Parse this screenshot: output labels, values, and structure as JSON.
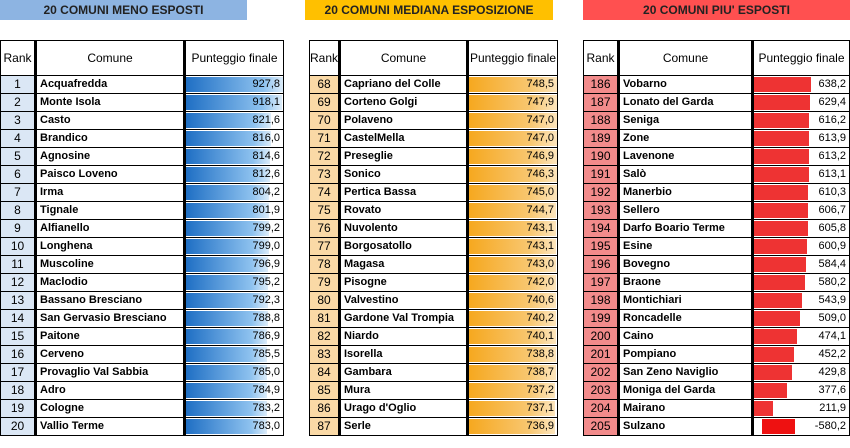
{
  "sections": [
    {
      "title": "20 COMUNI MENO ESPOSTI",
      "header_color": "#8db4e2",
      "headers": {
        "rank": "Rank",
        "comune": "Comune",
        "score": "Punteggio finale"
      },
      "rows": [
        {
          "rank": "1",
          "comune": "Acquafredda",
          "score": "927,8",
          "bar": 1.0
        },
        {
          "rank": "2",
          "comune": "Monte Isola",
          "score": "918,1",
          "bar": 0.99
        },
        {
          "rank": "3",
          "comune": "Casto",
          "score": "821,6",
          "bar": 0.88
        },
        {
          "rank": "4",
          "comune": "Brandico",
          "score": "816,0",
          "bar": 0.88
        },
        {
          "rank": "5",
          "comune": "Agnosine",
          "score": "814,6",
          "bar": 0.87
        },
        {
          "rank": "6",
          "comune": "Paisco Loveno",
          "score": "812,6",
          "bar": 0.87
        },
        {
          "rank": "7",
          "comune": "Irma",
          "score": "804,2",
          "bar": 0.86
        },
        {
          "rank": "8",
          "comune": "Tignale",
          "score": "801,9",
          "bar": 0.86
        },
        {
          "rank": "9",
          "comune": "Alfianello",
          "score": "799,2",
          "bar": 0.86
        },
        {
          "rank": "10",
          "comune": "Longhena",
          "score": "799,0",
          "bar": 0.86
        },
        {
          "rank": "11",
          "comune": "Muscoline",
          "score": "796,9",
          "bar": 0.85
        },
        {
          "rank": "12",
          "comune": "Maclodio",
          "score": "795,2",
          "bar": 0.85
        },
        {
          "rank": "13",
          "comune": "Bassano Bresciano",
          "score": "792,3",
          "bar": 0.85
        },
        {
          "rank": "14",
          "comune": "San Gervasio Bresciano",
          "score": "788,8",
          "bar": 0.85
        },
        {
          "rank": "15",
          "comune": "Paitone",
          "score": "786,9",
          "bar": 0.84
        },
        {
          "rank": "16",
          "comune": "Cerveno",
          "score": "785,5",
          "bar": 0.84
        },
        {
          "rank": "17",
          "comune": "Provaglio Val Sabbia",
          "score": "785,0",
          "bar": 0.84
        },
        {
          "rank": "18",
          "comune": "Adro",
          "score": "784,9",
          "bar": 0.84
        },
        {
          "rank": "19",
          "comune": "Cologne",
          "score": "783,2",
          "bar": 0.84
        },
        {
          "rank": "20",
          "comune": "Vallio Terme",
          "score": "783,0",
          "bar": 0.84
        }
      ]
    },
    {
      "title": "20 COMUNI MEDIANA ESPOSIZIONE",
      "header_color": "#ffc000",
      "headers": {
        "rank": "Rank",
        "comune": "Comune",
        "score": "Punteggio finale"
      },
      "rows": [
        {
          "rank": "68",
          "comune": "Capriano del Colle",
          "score": "748,5",
          "bar": 1.0
        },
        {
          "rank": "69",
          "comune": "Corteno Golgi",
          "score": "747,9",
          "bar": 1.0
        },
        {
          "rank": "70",
          "comune": "Polaveno",
          "score": "747,0",
          "bar": 1.0
        },
        {
          "rank": "71",
          "comune": "CastelMella",
          "score": "747,0",
          "bar": 1.0
        },
        {
          "rank": "72",
          "comune": "Preseglie",
          "score": "746,9",
          "bar": 1.0
        },
        {
          "rank": "73",
          "comune": "Sonico",
          "score": "746,3",
          "bar": 1.0
        },
        {
          "rank": "74",
          "comune": "Pertica Bassa",
          "score": "745,0",
          "bar": 1.0
        },
        {
          "rank": "75",
          "comune": "Rovato",
          "score": "744,7",
          "bar": 0.99
        },
        {
          "rank": "76",
          "comune": "Nuvolento",
          "score": "743,1",
          "bar": 0.99
        },
        {
          "rank": "77",
          "comune": "Borgosatollo",
          "score": "743,1",
          "bar": 0.99
        },
        {
          "rank": "78",
          "comune": "Magasa",
          "score": "743,0",
          "bar": 0.99
        },
        {
          "rank": "79",
          "comune": "Pisogne",
          "score": "742,0",
          "bar": 0.99
        },
        {
          "rank": "80",
          "comune": "Valvestino",
          "score": "740,6",
          "bar": 0.99
        },
        {
          "rank": "81",
          "comune": "Gardone Val Trompia",
          "score": "740,2",
          "bar": 0.99
        },
        {
          "rank": "82",
          "comune": "Niardo",
          "score": "740,1",
          "bar": 0.99
        },
        {
          "rank": "83",
          "comune": "Isorella",
          "score": "738,8",
          "bar": 0.99
        },
        {
          "rank": "84",
          "comune": "Gambara",
          "score": "738,7",
          "bar": 0.99
        },
        {
          "rank": "85",
          "comune": "Mura",
          "score": "737,2",
          "bar": 0.98
        },
        {
          "rank": "86",
          "comune": "Urago d'Oglio",
          "score": "737,1",
          "bar": 0.98
        },
        {
          "rank": "87",
          "comune": "Serle",
          "score": "736,9",
          "bar": 0.98
        }
      ]
    },
    {
      "title": "20 COMUNI PIU' ESPOSTI",
      "header_color": "#ff5050",
      "headers": {
        "rank": "Rank",
        "comune": "Comune",
        "score": "Punteggio finale"
      },
      "rows": [
        {
          "rank": "186",
          "comune": "Vobarno",
          "score": "638,2",
          "bar": 0.6
        },
        {
          "rank": "187",
          "comune": "Lonato del Garda",
          "score": "629,4",
          "bar": 0.59
        },
        {
          "rank": "188",
          "comune": "Seniga",
          "score": "616,2",
          "bar": 0.58
        },
        {
          "rank": "189",
          "comune": "Zone",
          "score": "613,9",
          "bar": 0.58
        },
        {
          "rank": "190",
          "comune": "Lavenone",
          "score": "613,2",
          "bar": 0.58
        },
        {
          "rank": "191",
          "comune": "Salò",
          "score": "613,1",
          "bar": 0.58
        },
        {
          "rank": "192",
          "comune": "Manerbio",
          "score": "610,3",
          "bar": 0.57
        },
        {
          "rank": "193",
          "comune": "Sellero",
          "score": "606,7",
          "bar": 0.57
        },
        {
          "rank": "194",
          "comune": "Darfo Boario Terme",
          "score": "605,8",
          "bar": 0.57
        },
        {
          "rank": "195",
          "comune": "Esine",
          "score": "600,9",
          "bar": 0.56
        },
        {
          "rank": "196",
          "comune": "Bovegno",
          "score": "584,4",
          "bar": 0.55
        },
        {
          "rank": "197",
          "comune": "Braone",
          "score": "580,2",
          "bar": 0.54
        },
        {
          "rank": "198",
          "comune": "Montichiari",
          "score": "543,9",
          "bar": 0.51
        },
        {
          "rank": "199",
          "comune": "Roncadelle",
          "score": "509,0",
          "bar": 0.48
        },
        {
          "rank": "200",
          "comune": "Caino",
          "score": "474,1",
          "bar": 0.45
        },
        {
          "rank": "201",
          "comune": "Pompiano",
          "score": "452,2",
          "bar": 0.42
        },
        {
          "rank": "202",
          "comune": "San Zeno Naviglio",
          "score": "429,8",
          "bar": 0.4
        },
        {
          "rank": "203",
          "comune": "Moniga del Garda",
          "score": "377,6",
          "bar": 0.35
        },
        {
          "rank": "204",
          "comune": "Mairano",
          "score": "211,9",
          "bar": 0.2
        },
        {
          "rank": "205",
          "comune": "Sulzano",
          "score": "-580,2",
          "bar": -0.54
        }
      ]
    }
  ]
}
